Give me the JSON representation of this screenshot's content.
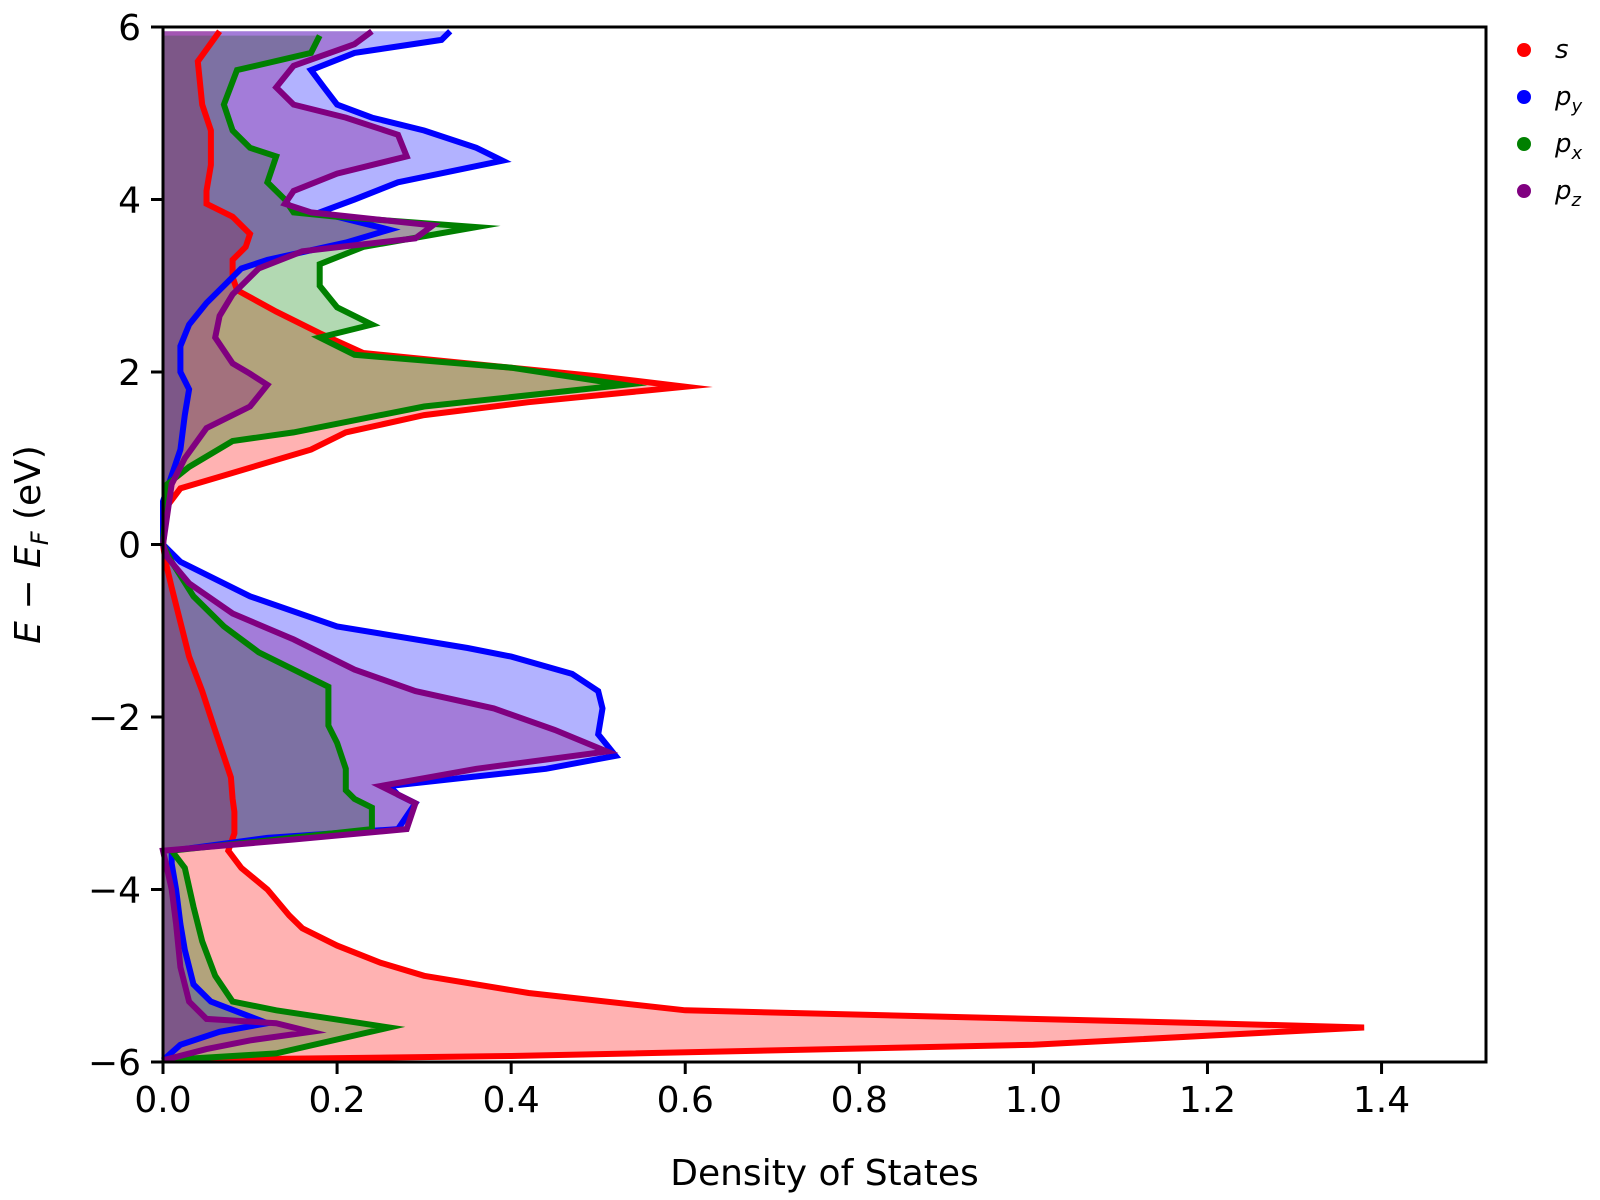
{
  "chart_data": {
    "type": "area",
    "orientation": "horizontal",
    "xlabel": "Density of States",
    "ylabel_parts": {
      "E": "E",
      "minus": " − ",
      "EF": "E",
      "F_sub": "F",
      "unit": " (eV)"
    },
    "xlim": [
      0,
      1.52
    ],
    "ylim": [
      -6,
      6
    ],
    "x_ticks": [
      0.0,
      0.2,
      0.4,
      0.6,
      0.8,
      1.0,
      1.2,
      1.4
    ],
    "x_tick_labels": [
      "0.0",
      "0.2",
      "0.4",
      "0.6",
      "0.8",
      "1.0",
      "1.2",
      "1.4"
    ],
    "y_ticks": [
      -6,
      -4,
      -2,
      0,
      2,
      4,
      6
    ],
    "y_tick_labels": [
      "−6",
      "−4",
      "−2",
      "0",
      "2",
      "4",
      "6"
    ],
    "grid": false,
    "legend_position": "right-outside-top",
    "series": [
      {
        "name": "s",
        "base": "s",
        "sub": "",
        "color": "#ff0000",
        "fill": "#ff0000",
        "points": [
          [
            0.0,
            -5.98
          ],
          [
            0.4,
            -5.93
          ],
          [
            1.0,
            -5.8
          ],
          [
            1.38,
            -5.6
          ],
          [
            1.2,
            -5.55
          ],
          [
            0.6,
            -5.4
          ],
          [
            0.42,
            -5.2
          ],
          [
            0.3,
            -5.0
          ],
          [
            0.25,
            -4.85
          ],
          [
            0.2,
            -4.65
          ],
          [
            0.16,
            -4.45
          ],
          [
            0.145,
            -4.3
          ],
          [
            0.12,
            -4.0
          ],
          [
            0.09,
            -3.75
          ],
          [
            0.075,
            -3.55
          ],
          [
            0.082,
            -3.35
          ],
          [
            0.082,
            -3.1
          ],
          [
            0.08,
            -2.95
          ],
          [
            0.078,
            -2.7
          ],
          [
            0.068,
            -2.4
          ],
          [
            0.058,
            -2.1
          ],
          [
            0.045,
            -1.7
          ],
          [
            0.03,
            -1.3
          ],
          [
            0.02,
            -0.9
          ],
          [
            0.01,
            -0.5
          ],
          [
            0.003,
            -0.2
          ],
          [
            0.0,
            0.0
          ],
          [
            0.005,
            0.45
          ],
          [
            0.02,
            0.65
          ],
          [
            0.07,
            0.8
          ],
          [
            0.17,
            1.1
          ],
          [
            0.21,
            1.3
          ],
          [
            0.3,
            1.5
          ],
          [
            0.42,
            1.65
          ],
          [
            0.55,
            1.78
          ],
          [
            0.6,
            1.83
          ],
          [
            0.5,
            1.95
          ],
          [
            0.35,
            2.1
          ],
          [
            0.23,
            2.22
          ],
          [
            0.18,
            2.45
          ],
          [
            0.13,
            2.7
          ],
          [
            0.085,
            2.95
          ],
          [
            0.08,
            3.1
          ],
          [
            0.08,
            3.3
          ],
          [
            0.095,
            3.45
          ],
          [
            0.1,
            3.6
          ],
          [
            0.08,
            3.8
          ],
          [
            0.05,
            3.95
          ],
          [
            0.05,
            4.1
          ],
          [
            0.055,
            4.4
          ],
          [
            0.055,
            4.8
          ],
          [
            0.045,
            5.1
          ],
          [
            0.04,
            5.6
          ],
          [
            0.065,
            5.95
          ]
        ]
      },
      {
        "name": "py",
        "base": "p",
        "sub": "y",
        "color": "#0000ff",
        "fill": "#0000ff",
        "points": [
          [
            0.0,
            -5.98
          ],
          [
            0.02,
            -5.8
          ],
          [
            0.065,
            -5.65
          ],
          [
            0.12,
            -5.55
          ],
          [
            0.055,
            -5.3
          ],
          [
            0.035,
            -5.1
          ],
          [
            0.025,
            -4.7
          ],
          [
            0.02,
            -4.4
          ],
          [
            0.015,
            -4.0
          ],
          [
            0.01,
            -3.7
          ],
          [
            0.01,
            -3.55
          ],
          [
            0.12,
            -3.4
          ],
          [
            0.27,
            -3.3
          ],
          [
            0.29,
            -3.0
          ],
          [
            0.27,
            -2.9
          ],
          [
            0.26,
            -2.8
          ],
          [
            0.35,
            -2.7
          ],
          [
            0.44,
            -2.6
          ],
          [
            0.52,
            -2.45
          ],
          [
            0.5,
            -2.2
          ],
          [
            0.505,
            -1.9
          ],
          [
            0.5,
            -1.7
          ],
          [
            0.47,
            -1.5
          ],
          [
            0.4,
            -1.3
          ],
          [
            0.35,
            -1.2
          ],
          [
            0.2,
            -0.95
          ],
          [
            0.1,
            -0.6
          ],
          [
            0.02,
            -0.2
          ],
          [
            0.0,
            0.0
          ],
          [
            0.0,
            0.5
          ],
          [
            0.01,
            0.8
          ],
          [
            0.02,
            1.1
          ],
          [
            0.025,
            1.5
          ],
          [
            0.03,
            1.8
          ],
          [
            0.02,
            2.0
          ],
          [
            0.02,
            2.3
          ],
          [
            0.03,
            2.55
          ],
          [
            0.05,
            2.8
          ],
          [
            0.07,
            3.0
          ],
          [
            0.09,
            3.2
          ],
          [
            0.12,
            3.3
          ],
          [
            0.21,
            3.5
          ],
          [
            0.26,
            3.65
          ],
          [
            0.18,
            3.85
          ],
          [
            0.22,
            4.0
          ],
          [
            0.27,
            4.2
          ],
          [
            0.39,
            4.45
          ],
          [
            0.36,
            4.6
          ],
          [
            0.3,
            4.8
          ],
          [
            0.24,
            4.95
          ],
          [
            0.2,
            5.1
          ],
          [
            0.185,
            5.3
          ],
          [
            0.17,
            5.5
          ],
          [
            0.22,
            5.7
          ],
          [
            0.32,
            5.85
          ],
          [
            0.33,
            5.95
          ]
        ]
      },
      {
        "name": "px",
        "base": "p",
        "sub": "x",
        "color": "#008000",
        "fill": "#008000",
        "points": [
          [
            0.0,
            -5.98
          ],
          [
            0.13,
            -5.9
          ],
          [
            0.26,
            -5.6
          ],
          [
            0.13,
            -5.4
          ],
          [
            0.08,
            -5.3
          ],
          [
            0.06,
            -5.0
          ],
          [
            0.045,
            -4.6
          ],
          [
            0.035,
            -4.2
          ],
          [
            0.025,
            -3.75
          ],
          [
            0.01,
            -3.55
          ],
          [
            0.13,
            -3.42
          ],
          [
            0.24,
            -3.3
          ],
          [
            0.24,
            -3.05
          ],
          [
            0.22,
            -2.95
          ],
          [
            0.21,
            -2.85
          ],
          [
            0.21,
            -2.6
          ],
          [
            0.2,
            -2.3
          ],
          [
            0.19,
            -2.1
          ],
          [
            0.19,
            -1.65
          ],
          [
            0.15,
            -1.45
          ],
          [
            0.11,
            -1.25
          ],
          [
            0.07,
            -0.95
          ],
          [
            0.035,
            -0.6
          ],
          [
            0.01,
            -0.2
          ],
          [
            0.0,
            0.0
          ],
          [
            0.005,
            0.7
          ],
          [
            0.03,
            0.9
          ],
          [
            0.08,
            1.2
          ],
          [
            0.15,
            1.3
          ],
          [
            0.3,
            1.6
          ],
          [
            0.53,
            1.85
          ],
          [
            0.4,
            2.05
          ],
          [
            0.22,
            2.2
          ],
          [
            0.18,
            2.4
          ],
          [
            0.24,
            2.55
          ],
          [
            0.2,
            2.75
          ],
          [
            0.18,
            3.0
          ],
          [
            0.18,
            3.25
          ],
          [
            0.23,
            3.45
          ],
          [
            0.36,
            3.68
          ],
          [
            0.2,
            3.8
          ],
          [
            0.15,
            3.85
          ],
          [
            0.14,
            4.0
          ],
          [
            0.12,
            4.2
          ],
          [
            0.13,
            4.5
          ],
          [
            0.1,
            4.6
          ],
          [
            0.08,
            4.8
          ],
          [
            0.07,
            5.1
          ],
          [
            0.085,
            5.5
          ],
          [
            0.17,
            5.7
          ],
          [
            0.18,
            5.9
          ]
        ]
      },
      {
        "name": "pz",
        "base": "p",
        "sub": "z",
        "color": "#800080",
        "fill": "#800080",
        "points": [
          [
            0.0,
            -5.98
          ],
          [
            0.05,
            -5.85
          ],
          [
            0.1,
            -5.75
          ],
          [
            0.17,
            -5.65
          ],
          [
            0.13,
            -5.55
          ],
          [
            0.05,
            -5.5
          ],
          [
            0.03,
            -5.3
          ],
          [
            0.02,
            -4.9
          ],
          [
            0.015,
            -4.4
          ],
          [
            0.01,
            -4.0
          ],
          [
            0.0,
            -3.55
          ],
          [
            0.15,
            -3.42
          ],
          [
            0.28,
            -3.3
          ],
          [
            0.29,
            -3.0
          ],
          [
            0.28,
            -2.95
          ],
          [
            0.25,
            -2.8
          ],
          [
            0.36,
            -2.6
          ],
          [
            0.51,
            -2.4
          ],
          [
            0.45,
            -2.15
          ],
          [
            0.38,
            -1.9
          ],
          [
            0.29,
            -1.7
          ],
          [
            0.22,
            -1.45
          ],
          [
            0.15,
            -1.1
          ],
          [
            0.08,
            -0.8
          ],
          [
            0.03,
            -0.45
          ],
          [
            0.005,
            -0.15
          ],
          [
            0.0,
            0.0
          ],
          [
            0.01,
            0.7
          ],
          [
            0.025,
            1.0
          ],
          [
            0.05,
            1.35
          ],
          [
            0.1,
            1.6
          ],
          [
            0.12,
            1.85
          ],
          [
            0.1,
            1.98
          ],
          [
            0.08,
            2.1
          ],
          [
            0.06,
            2.4
          ],
          [
            0.065,
            2.65
          ],
          [
            0.08,
            2.9
          ],
          [
            0.11,
            3.2
          ],
          [
            0.16,
            3.4
          ],
          [
            0.29,
            3.55
          ],
          [
            0.31,
            3.7
          ],
          [
            0.17,
            3.85
          ],
          [
            0.14,
            3.95
          ],
          [
            0.15,
            4.1
          ],
          [
            0.2,
            4.3
          ],
          [
            0.28,
            4.5
          ],
          [
            0.27,
            4.75
          ],
          [
            0.21,
            4.95
          ],
          [
            0.15,
            5.1
          ],
          [
            0.13,
            5.3
          ],
          [
            0.15,
            5.55
          ],
          [
            0.22,
            5.8
          ],
          [
            0.24,
            5.95
          ]
        ]
      }
    ]
  }
}
